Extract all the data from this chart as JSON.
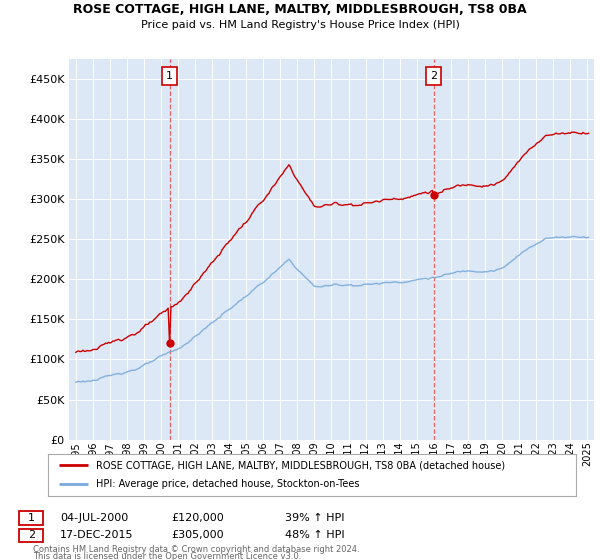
{
  "title": "ROSE COTTAGE, HIGH LANE, MALTBY, MIDDLESBROUGH, TS8 0BA",
  "subtitle": "Price paid vs. HM Land Registry's House Price Index (HPI)",
  "legend_line1": "ROSE COTTAGE, HIGH LANE, MALTBY, MIDDLESBROUGH, TS8 0BA (detached house)",
  "legend_line2": "HPI: Average price, detached house, Stockton-on-Tees",
  "footnote1": "Contains HM Land Registry data © Crown copyright and database right 2024.",
  "footnote2": "This data is licensed under the Open Government Licence v3.0.",
  "sale1_date": "04-JUL-2000",
  "sale1_price": "£120,000",
  "sale1_hpi": "39% ↑ HPI",
  "sale2_date": "17-DEC-2015",
  "sale2_price": "£305,000",
  "sale2_hpi": "48% ↑ HPI",
  "sale1_x": 2000.5,
  "sale1_y": 120000,
  "sale2_x": 2015.96,
  "sale2_y": 305000,
  "hpi_color": "#7aaadd",
  "price_color": "#cc0000",
  "vline_color": "#dd4444",
  "marker_color": "#cc0000",
  "bg_color": "#dce8f5",
  "plot_bg": "#ffffff",
  "ylim": [
    0,
    475000
  ],
  "xlim_start": 1994.6,
  "xlim_end": 2025.4,
  "yticks": [
    0,
    50000,
    100000,
    150000,
    200000,
    250000,
    300000,
    350000,
    400000,
    450000
  ]
}
